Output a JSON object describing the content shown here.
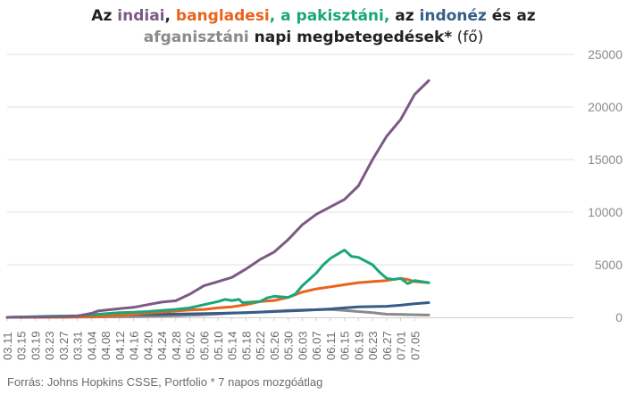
{
  "title": {
    "line1": [
      {
        "text": "Az ",
        "color": "#222222",
        "weight": "bold"
      },
      {
        "text": "indiai",
        "color": "#7b5a83",
        "weight": "bold"
      },
      {
        "text": ", ",
        "color": "#222222",
        "weight": "bold"
      },
      {
        "text": "bangladesi",
        "color": "#e8631c",
        "weight": "bold"
      },
      {
        "text": ", a pakisztáni,",
        "color": "#1aa67c",
        "weight": "bold"
      },
      {
        "text": " az ",
        "color": "#222222",
        "weight": "bold"
      },
      {
        "text": "indonéz",
        "color": "#355d86",
        "weight": "bold"
      },
      {
        "text": " és az",
        "color": "#222222",
        "weight": "bold"
      }
    ],
    "line2": [
      {
        "text": "afganisztáni",
        "color": "#8a8a8a",
        "weight": "bold"
      },
      {
        "text": " napi megbetegedések*",
        "color": "#222222",
        "weight": "bold"
      },
      {
        "text": " (fő)",
        "color": "#222222",
        "weight": "normal"
      }
    ]
  },
  "source": "Forrás: Johns Hopkins CSSE, Portfolio   * 7 napos mozgóátlag",
  "chart_data": {
    "type": "line",
    "x_ticks": [
      "03.11",
      "03.15",
      "03.19",
      "03.23",
      "03.27",
      "03.31",
      "04.04",
      "04.08",
      "04.12",
      "04.16",
      "04.20",
      "04.24",
      "04.28",
      "05.02",
      "05.06",
      "05.10",
      "05.14",
      "05.18",
      "05.22",
      "05.26",
      "05.30",
      "06.03",
      "06.07",
      "06.11",
      "06.15",
      "06.19",
      "06.23",
      "06.27",
      "07.01",
      "07.05"
    ],
    "y_ticks": [
      0,
      5000,
      10000,
      15000,
      20000,
      25000
    ],
    "ylim": [
      0,
      25000
    ],
    "grid": true,
    "y_axis_side": "right",
    "series": [
      {
        "name": "indiai",
        "color": "#7b5a83",
        "points": [
          [
            "03.11",
            0
          ],
          [
            "03.19",
            30
          ],
          [
            "03.27",
            80
          ],
          [
            "03.31",
            130
          ],
          [
            "04.04",
            380
          ],
          [
            "04.06",
            620
          ],
          [
            "04.12",
            820
          ],
          [
            "04.16",
            950
          ],
          [
            "04.20",
            1200
          ],
          [
            "04.24",
            1450
          ],
          [
            "04.28",
            1580
          ],
          [
            "05.02",
            2200
          ],
          [
            "05.06",
            3000
          ],
          [
            "05.10",
            3400
          ],
          [
            "05.14",
            3800
          ],
          [
            "05.18",
            4600
          ],
          [
            "05.22",
            5500
          ],
          [
            "05.26",
            6200
          ],
          [
            "05.30",
            7400
          ],
          [
            "06.03",
            8800
          ],
          [
            "06.07",
            9800
          ],
          [
            "06.11",
            10500
          ],
          [
            "06.15",
            11200
          ],
          [
            "06.19",
            12500
          ],
          [
            "06.23",
            15000
          ],
          [
            "06.27",
            17200
          ],
          [
            "07.01",
            18800
          ],
          [
            "07.05",
            21200
          ],
          [
            "07.09",
            22500
          ]
        ]
      },
      {
        "name": "pakisztáni",
        "color": "#1aa67c",
        "points": [
          [
            "03.11",
            0
          ],
          [
            "03.23",
            100
          ],
          [
            "03.31",
            150
          ],
          [
            "04.04",
            250
          ],
          [
            "04.08",
            350
          ],
          [
            "04.12",
            450
          ],
          [
            "04.16",
            480
          ],
          [
            "04.20",
            550
          ],
          [
            "04.24",
            650
          ],
          [
            "04.28",
            750
          ],
          [
            "05.02",
            900
          ],
          [
            "05.06",
            1200
          ],
          [
            "05.10",
            1500
          ],
          [
            "05.12",
            1700
          ],
          [
            "05.14",
            1600
          ],
          [
            "05.16",
            1700
          ],
          [
            "05.17",
            1400
          ],
          [
            "05.22",
            1500
          ],
          [
            "05.24",
            1850
          ],
          [
            "05.26",
            2000
          ],
          [
            "05.30",
            1900
          ],
          [
            "06.01",
            2200
          ],
          [
            "06.03",
            3000
          ],
          [
            "06.07",
            4200
          ],
          [
            "06.09",
            5000
          ],
          [
            "06.11",
            5600
          ],
          [
            "06.15",
            6400
          ],
          [
            "06.17",
            5800
          ],
          [
            "06.19",
            5700
          ],
          [
            "06.23",
            5000
          ],
          [
            "06.25",
            4300
          ],
          [
            "06.27",
            3700
          ],
          [
            "06.29",
            3600
          ],
          [
            "07.01",
            3700
          ],
          [
            "07.03",
            3200
          ],
          [
            "07.05",
            3500
          ],
          [
            "07.09",
            3300
          ]
        ]
      },
      {
        "name": "bangladesi",
        "color": "#e8631c",
        "points": [
          [
            "03.11",
            0
          ],
          [
            "03.27",
            10
          ],
          [
            "04.04",
            50
          ],
          [
            "04.08",
            100
          ],
          [
            "04.12",
            200
          ],
          [
            "04.16",
            280
          ],
          [
            "04.20",
            400
          ],
          [
            "04.24",
            500
          ],
          [
            "04.28",
            600
          ],
          [
            "05.02",
            700
          ],
          [
            "05.06",
            750
          ],
          [
            "05.10",
            900
          ],
          [
            "05.14",
            1000
          ],
          [
            "05.18",
            1200
          ],
          [
            "05.22",
            1500
          ],
          [
            "05.26",
            1600
          ],
          [
            "05.30",
            1900
          ],
          [
            "06.03",
            2400
          ],
          [
            "06.07",
            2700
          ],
          [
            "06.11",
            2900
          ],
          [
            "06.15",
            3100
          ],
          [
            "06.19",
            3300
          ],
          [
            "06.23",
            3400
          ],
          [
            "06.27",
            3500
          ],
          [
            "07.01",
            3700
          ],
          [
            "07.03",
            3600
          ],
          [
            "07.05",
            3400
          ],
          [
            "07.09",
            3300
          ]
        ]
      },
      {
        "name": "indonéz",
        "color": "#355d86",
        "points": [
          [
            "03.11",
            0
          ],
          [
            "03.19",
            30
          ],
          [
            "03.31",
            100
          ],
          [
            "04.12",
            250
          ],
          [
            "04.24",
            300
          ],
          [
            "05.02",
            330
          ],
          [
            "05.10",
            380
          ],
          [
            "05.18",
            450
          ],
          [
            "05.26",
            550
          ],
          [
            "06.03",
            650
          ],
          [
            "06.11",
            800
          ],
          [
            "06.15",
            900
          ],
          [
            "06.19",
            1000
          ],
          [
            "06.27",
            1050
          ],
          [
            "07.01",
            1150
          ],
          [
            "07.05",
            1300
          ],
          [
            "07.09",
            1400
          ]
        ]
      },
      {
        "name": "afganisztáni",
        "color": "#8a8a8a",
        "points": [
          [
            "03.11",
            0
          ],
          [
            "04.04",
            30
          ],
          [
            "04.16",
            80
          ],
          [
            "04.28",
            150
          ],
          [
            "05.06",
            250
          ],
          [
            "05.14",
            400
          ],
          [
            "05.22",
            500
          ],
          [
            "05.30",
            650
          ],
          [
            "06.03",
            700
          ],
          [
            "06.11",
            750
          ],
          [
            "06.15",
            650
          ],
          [
            "06.19",
            550
          ],
          [
            "06.23",
            450
          ],
          [
            "06.27",
            300
          ],
          [
            "07.01",
            280
          ],
          [
            "07.05",
            250
          ],
          [
            "07.09",
            220
          ]
        ]
      }
    ]
  }
}
